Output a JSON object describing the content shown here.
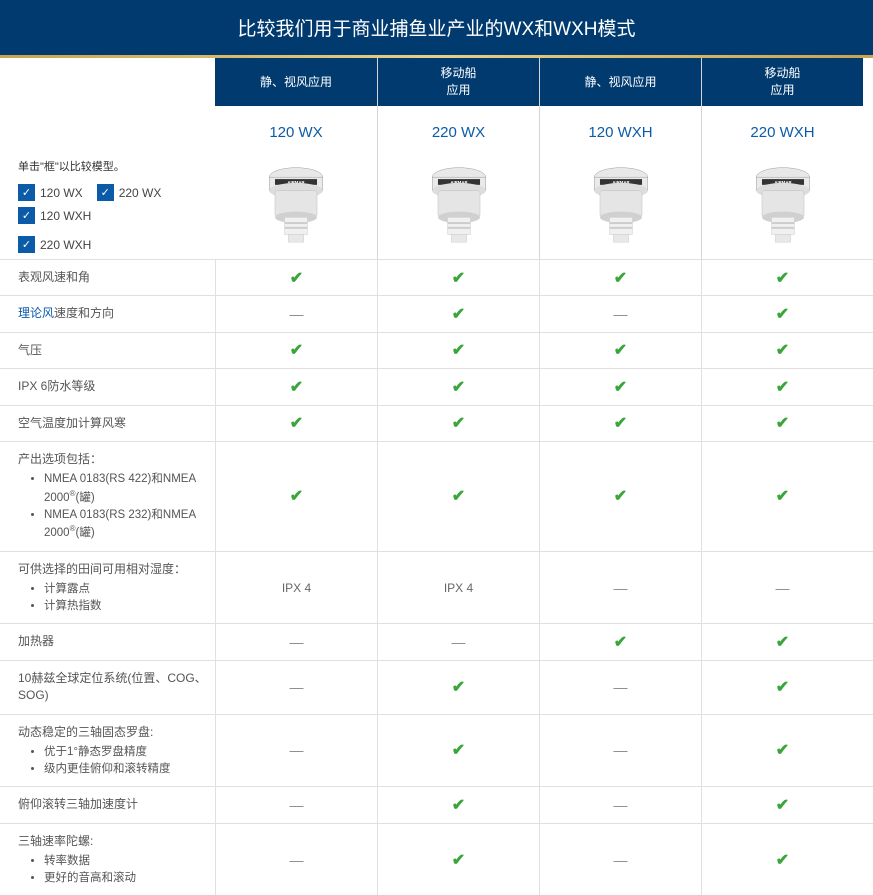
{
  "title": "比较我们用于商业捕鱼业产业的WX和WXH模式",
  "side_note": "单击\"框\"以比较模型。",
  "colors": {
    "header_bg": "#003a6f",
    "gold": "#c9a34e",
    "accent": "#0b5ba8",
    "check": "#3aa63a",
    "border": "#e0e0e0"
  },
  "checkboxes": [
    {
      "label": "120 WX",
      "checked": true
    },
    {
      "label": "220 WX",
      "checked": true
    },
    {
      "label": "120 WXH",
      "checked": true
    },
    {
      "label": "220 WXH",
      "checked": true
    }
  ],
  "columns": [
    {
      "app": "静、视风应用",
      "model": "120 WX"
    },
    {
      "app": "移动船\n应用",
      "model": "220 WX"
    },
    {
      "app": "静、视风应用",
      "model": "120 WXH"
    },
    {
      "app": "移动船\n应用",
      "model": "220 WXH"
    }
  ],
  "features": [
    {
      "label": "表观风速和角",
      "cells": [
        "check",
        "check",
        "check",
        "check"
      ]
    },
    {
      "label": "<a href='#'>理论风</a>速度和方向",
      "cells": [
        "dash",
        "check",
        "dash",
        "check"
      ]
    },
    {
      "label": "气压",
      "cells": [
        "check",
        "check",
        "check",
        "check"
      ]
    },
    {
      "label": "IPX 6防水等级",
      "cells": [
        "check",
        "check",
        "check",
        "check"
      ]
    },
    {
      "label": "空气温度加计算风寒",
      "cells": [
        "check",
        "check",
        "check",
        "check"
      ]
    },
    {
      "label": "产出选项包括：",
      "sub": [
        "NMEA 0183(RS 422)和NMEA 2000<sup>®</sup>(罐)",
        "NMEA 0183(RS 232)和NMEA 2000<sup>®</sup>(罐)"
      ],
      "cells": [
        "check",
        "check",
        "check",
        "check"
      ]
    },
    {
      "label": "可供选择的田间可用相对湿度：",
      "sub": [
        "计算露点",
        "计算热指数"
      ],
      "cells": [
        "IPX 4",
        "IPX 4",
        "dash",
        "dash"
      ]
    },
    {
      "label": "加热器",
      "cells": [
        "dash",
        "dash",
        "check",
        "check"
      ]
    },
    {
      "label": "10赫兹全球定位系统(位置、COG、SOG)",
      "cells": [
        "dash",
        "check",
        "dash",
        "check"
      ]
    },
    {
      "label": "动态稳定的三轴固态罗盘:",
      "sub": [
        "优于1°静态罗盘精度",
        "级内更佳俯仰和滚转精度"
      ],
      "cells": [
        "dash",
        "check",
        "dash",
        "check"
      ]
    },
    {
      "label": "俯仰滚转三轴加速度计",
      "cells": [
        "dash",
        "check",
        "dash",
        "check"
      ]
    },
    {
      "label": "三轴速率陀螺:",
      "sub": [
        "转率数据",
        "更好的音高和滚动"
      ],
      "cells": [
        "dash",
        "check",
        "dash",
        "check"
      ]
    }
  ]
}
